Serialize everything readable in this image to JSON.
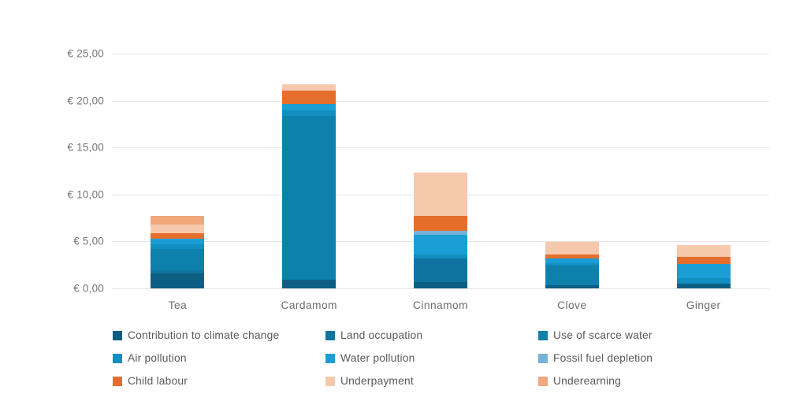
{
  "chart_data": {
    "type": "bar",
    "subtype": "stacked-vertical",
    "title": "",
    "xlabel": "",
    "ylabel": "",
    "ylim": [
      0,
      25
    ],
    "grid": true,
    "legend_position": "bottom",
    "currency": "EUR",
    "y_ticks": [
      {
        "value": 25,
        "label": "€ 25,00"
      },
      {
        "value": 20,
        "label": "€ 20,00"
      },
      {
        "value": 15,
        "label": "€ 15,00"
      },
      {
        "value": 10,
        "label": "€ 10,00"
      },
      {
        "value": 5,
        "label": "€ 5,00"
      },
      {
        "value": 0,
        "label": "€ 0,00"
      }
    ],
    "categories": [
      "Tea",
      "Cardamom",
      "Cinnamom",
      "Clove",
      "Ginger"
    ],
    "series": [
      {
        "name": "Contribution to climate change",
        "color": "#0c5f82",
        "values": [
          1.6,
          0.9,
          0.65,
          0.3,
          0.5
        ]
      },
      {
        "name": "Land occupation",
        "color": "#0f74a0",
        "values": [
          0.3,
          0.0,
          2.5,
          0.0,
          0.0
        ]
      },
      {
        "name": "Use of scarce water",
        "color": "#0d81ac",
        "values": [
          2.3,
          17.5,
          0.0,
          2.1,
          0.0
        ]
      },
      {
        "name": "Air pollution",
        "color": "#128fc1",
        "values": [
          0.5,
          0.6,
          0.45,
          0.3,
          0.6
        ]
      },
      {
        "name": "Water pollution",
        "color": "#1b9ed6",
        "values": [
          0.6,
          0.6,
          2.1,
          0.45,
          1.5
        ]
      },
      {
        "name": "Fossil fuel depletion",
        "color": "#74b2da",
        "values": [
          0.0,
          0.0,
          0.4,
          0.0,
          0.0
        ]
      },
      {
        "name": "Child labour",
        "color": "#e56e2c",
        "values": [
          0.6,
          1.5,
          1.6,
          0.47,
          0.76
        ]
      },
      {
        "name": "Underpayment",
        "color": "#f6c9ad",
        "values": [
          0.9,
          0.6,
          4.65,
          1.35,
          1.26
        ]
      },
      {
        "name": "Underearning",
        "color": "#f1a87c",
        "values": [
          0.9,
          0.0,
          0.0,
          0.0,
          0.0
        ]
      }
    ],
    "totals": [
      7.7,
      21.7,
      12.35,
      4.97,
      4.62
    ]
  }
}
